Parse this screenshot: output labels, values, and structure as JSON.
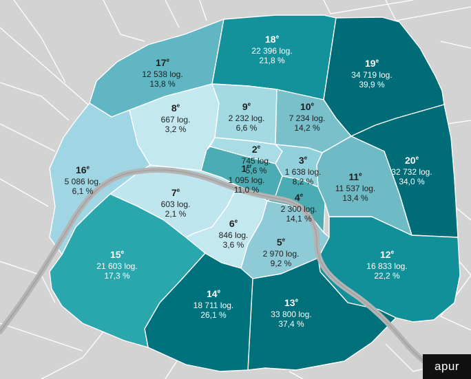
{
  "brand": "apur",
  "arrondissements": [
    {
      "id": "1",
      "num": "1",
      "sup": "er",
      "logements": "1 095 log.",
      "pct": "11,0 %",
      "color": "#4cacb3"
    },
    {
      "id": "2",
      "num": "2",
      "sup": "e",
      "logements": "745 log.",
      "pct": "5,6 %",
      "color": "#a9dde6"
    },
    {
      "id": "3",
      "num": "3",
      "sup": "e",
      "logements": "1 638 log.",
      "pct": "8,2 %",
      "color": "#92d0dc"
    },
    {
      "id": "4",
      "num": "4",
      "sup": "e",
      "logements": "2 300 log.",
      "pct": "14,1 %",
      "color": "#4cacb3"
    },
    {
      "id": "5",
      "num": "5",
      "sup": "e",
      "logements": "2 970 log.",
      "pct": "9,2 %",
      "color": "#8fcad7"
    },
    {
      "id": "6",
      "num": "6",
      "sup": "e",
      "logements": "846 log.",
      "pct": "3,6 %",
      "color": "#c3e8ef"
    },
    {
      "id": "7",
      "num": "7",
      "sup": "e",
      "logements": "603 log.",
      "pct": "2,1 %",
      "color": "#bfe5ee"
    },
    {
      "id": "8",
      "num": "8",
      "sup": "e",
      "logements": "667 log.",
      "pct": "3,2 %",
      "color": "#c3e8ef"
    },
    {
      "id": "9",
      "num": "9",
      "sup": "e",
      "logements": "2 232 log.",
      "pct": "6,6 %",
      "color": "#a3d9e3"
    },
    {
      "id": "10",
      "num": "10",
      "sup": "e",
      "logements": "7 234 log.",
      "pct": "14,2 %",
      "color": "#79c0cb"
    },
    {
      "id": "11",
      "num": "11",
      "sup": "e",
      "logements": "11 537 log.",
      "pct": "13,4 %",
      "color": "#6ebbc6"
    },
    {
      "id": "12",
      "num": "12",
      "sup": "e",
      "logements": "16 833 log.",
      "pct": "22,2 %",
      "color": "#119099"
    },
    {
      "id": "13",
      "num": "13",
      "sup": "e",
      "logements": "33 800 log.",
      "pct": "37,4 %",
      "color": "#00707a"
    },
    {
      "id": "14",
      "num": "14",
      "sup": "e",
      "logements": "18 711 log.",
      "pct": "26,1 %",
      "color": "#00727d"
    },
    {
      "id": "15",
      "num": "15",
      "sup": "e",
      "logements": "21 603 log.",
      "pct": "17,3 %",
      "color": "#2aa7ad"
    },
    {
      "id": "16",
      "num": "16",
      "sup": "e",
      "logements": "5 086 log.",
      "pct": "6,1 %",
      "color": "#a0d6e3"
    },
    {
      "id": "17",
      "num": "17",
      "sup": "e",
      "logements": "12 538 log.",
      "pct": "13,8 %",
      "color": "#61b6c4"
    },
    {
      "id": "18",
      "num": "18",
      "sup": "e",
      "logements": "22 396 log.",
      "pct": "21,8 %",
      "color": "#14929b"
    },
    {
      "id": "19",
      "num": "19",
      "sup": "e",
      "logements": "34 719 log.",
      "pct": "39,9 %",
      "color": "#006c77"
    },
    {
      "id": "20",
      "num": "20",
      "sup": "e",
      "logements": "32 732 log.",
      "pct": "34,0 %",
      "color": "#006c77"
    }
  ]
}
